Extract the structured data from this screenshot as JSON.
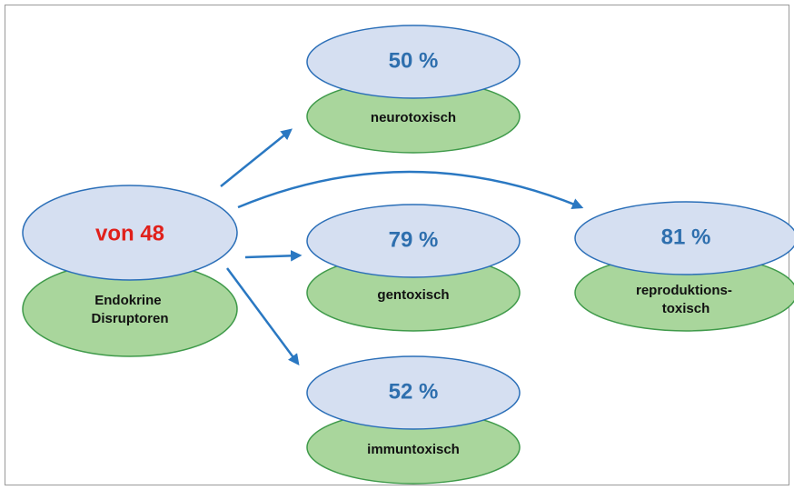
{
  "source": {
    "value": "von 48",
    "label_lines": [
      "Endokrine",
      "Disruptoren"
    ]
  },
  "targets": [
    {
      "value": "50 %",
      "label_lines": [
        "neurotoxisch"
      ]
    },
    {
      "value": "79 %",
      "label_lines": [
        "gentoxisch"
      ]
    },
    {
      "value": "52 %",
      "label_lines": [
        "immuntoxisch"
      ]
    },
    {
      "value": "81 %",
      "label_lines": [
        "reproduktions-",
        "toxisch"
      ]
    }
  ]
}
